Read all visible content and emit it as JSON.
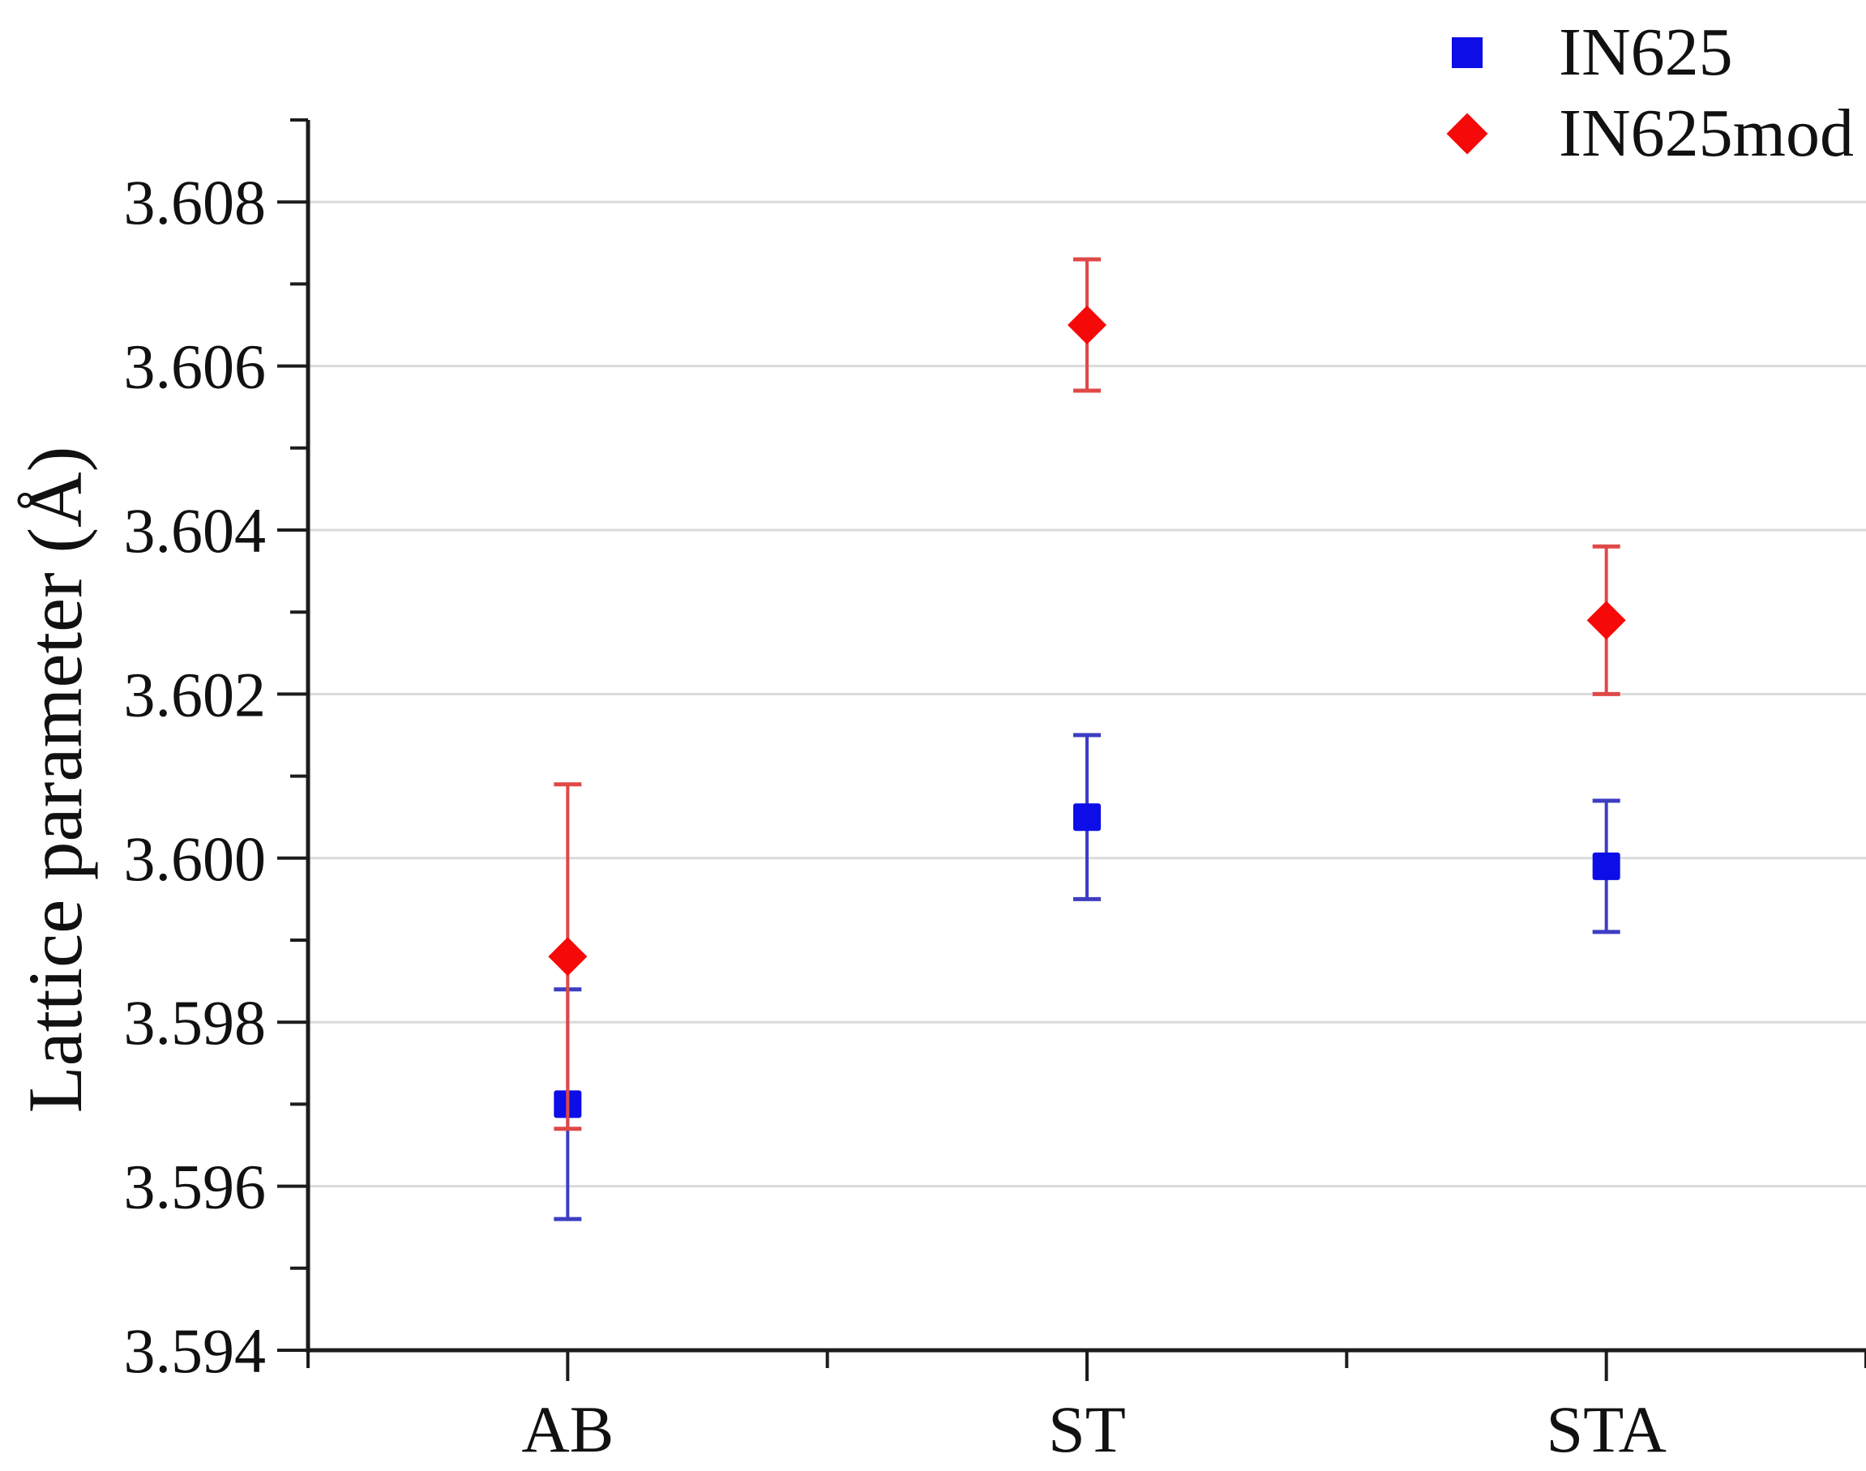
{
  "figure": {
    "y_axis_title": "Lattice parameter (Å)",
    "background_color": "#ffffff",
    "axis_color": "#1c1c1c",
    "gridline_color": "#dadada",
    "text_color": "#111111"
  },
  "legend": {
    "position": "top-right",
    "items": [
      {
        "label": "IN625",
        "marker": "square-icon",
        "color": "#0d0de8"
      },
      {
        "label": "IN625mod",
        "marker": "diamond-icon",
        "color": "#f60909"
      }
    ]
  },
  "chart_data": {
    "type": "scatter",
    "title": "",
    "xlabel": "",
    "ylabel": "Lattice parameter (Å)",
    "categories": [
      "AB",
      "ST",
      "STA"
    ],
    "series": [
      {
        "name": "IN625",
        "marker": "square",
        "color": "#0d0de8",
        "error_color": "#3d3dc2",
        "values": [
          3.597,
          3.6005,
          3.5999
        ],
        "errors": [
          0.0014,
          0.001,
          0.0008
        ]
      },
      {
        "name": "IN625mod",
        "marker": "diamond",
        "color": "#f60909",
        "error_color": "#e04848",
        "values": [
          3.5988,
          3.6065,
          3.6029
        ],
        "errors": [
          0.0021,
          0.0008,
          0.0009
        ]
      }
    ],
    "ylim": [
      3.594,
      3.609
    ],
    "y_major_ticks": [
      3.594,
      3.596,
      3.598,
      3.6,
      3.602,
      3.604,
      3.606,
      3.608
    ],
    "y_minor_step": 0.001,
    "y_tick_decimals": 3,
    "grid": "horizontal-major-only",
    "error_bars": "vertical-with-caps",
    "legend_position": "top-right"
  }
}
